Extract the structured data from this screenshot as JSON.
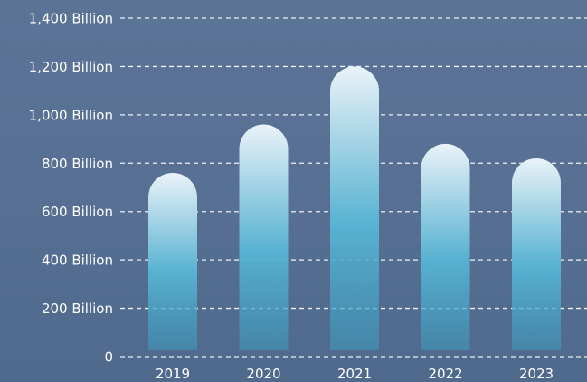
{
  "chart_data": {
    "type": "bar",
    "categories": [
      "2019",
      "2020",
      "2021",
      "2022",
      "2023"
    ],
    "values": [
      760,
      960,
      1200,
      880,
      820
    ],
    "ylim": [
      0,
      1400
    ],
    "y_ticks": [
      0,
      200,
      400,
      600,
      800,
      1000,
      1200,
      1400
    ],
    "y_tick_labels": [
      "0",
      "200 Billion",
      "400 Billion",
      "600 Billion",
      "800 Billion",
      "1,000 Billion",
      "1,200 Billion",
      "1,400 Billion"
    ],
    "grid": true,
    "bar_gradient": [
      "#eaf2f8",
      "#59b3d2",
      "#3d9cc0"
    ]
  }
}
